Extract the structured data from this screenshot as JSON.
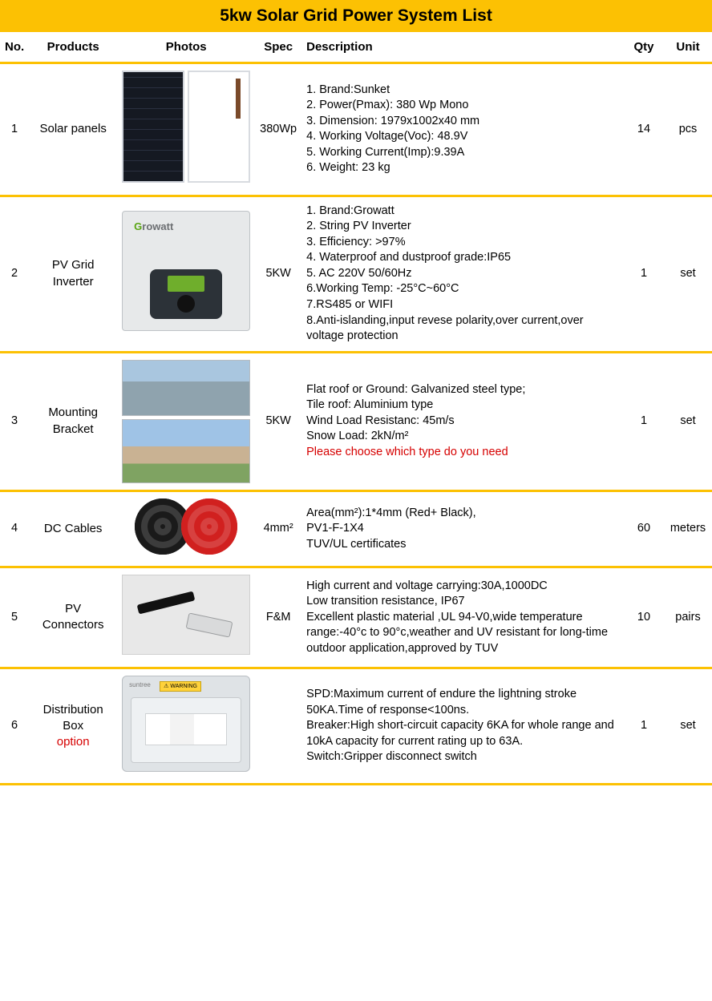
{
  "colors": {
    "accent": "#fcc103",
    "text": "#000000",
    "option_red": "#d60000",
    "background": "#ffffff"
  },
  "title": "5kw Solar Grid Power System List",
  "headers": {
    "no": "No.",
    "products": "Products",
    "photos": "Photos",
    "spec": "Spec",
    "description": "Description",
    "qty": "Qty",
    "unit": "Unit"
  },
  "rows": [
    {
      "no": "1",
      "product": "Solar panels",
      "product_option": "",
      "spec": "380Wp",
      "description_lines": [
        "1. Brand:Sunket",
        "2. Power(Pmax): 380 Wp Mono",
        "3. Dimension: 1979x1002x40 mm",
        "4. Working Voltage(Voc): 48.9V",
        "5. Working Current(Imp):9.39A",
        "6. Weight: 23 kg"
      ],
      "note_red": "",
      "qty": "14",
      "unit": "pcs",
      "photo_kind": "solar"
    },
    {
      "no": "2",
      "product": "PV Grid Inverter",
      "product_option": "",
      "spec": "5KW",
      "description_lines": [
        "1. Brand:Growatt",
        "2. String PV  Inverter",
        "3. Efficiency: >97%",
        "4. Waterproof and dustproof grade:IP65",
        "5. AC 220V 50/60Hz",
        "6.Working Temp: -25°C~60°C",
        "7.RS485 or WIFI",
        "8.Anti-islanding,input revese polarity,over current,over voltage protection"
      ],
      "note_red": "",
      "qty": "1",
      "unit": "set",
      "photo_kind": "inverter",
      "photo_brand": "Growatt"
    },
    {
      "no": "3",
      "product": "Mounting Bracket",
      "product_option": "",
      "spec": "5KW",
      "description_lines": [
        "Flat roof or Ground: Galvanized steel type;",
        "Tile roof: Aluminium type",
        "Wind Load Resistanc: 45m/s",
        "Snow Load: 2kN/m²"
      ],
      "note_red": "Please choose which type do you need",
      "qty": "1",
      "unit": "set",
      "photo_kind": "mounting"
    },
    {
      "no": "4",
      "product": "DC Cables",
      "product_option": "",
      "spec": "4mm²",
      "description_lines": [
        "Area(mm²):1*4mm (Red+ Black),",
        "PV1-F-1X4",
        "TUV/UL certificates"
      ],
      "note_red": "",
      "qty": "60",
      "unit": "meters",
      "photo_kind": "cables"
    },
    {
      "no": "5",
      "product": "PV Connectors",
      "product_option": "",
      "spec": "F&M",
      "description_lines": [
        "High current and voltage carrying:30A,1000DC",
        "Low transition resistance, IP67",
        "Excellent plastic material ,UL 94-V0,wide temperature range:-40°c to 90°c,weather and UV resistant for long-time outdoor application,approved by TUV"
      ],
      "note_red": "",
      "qty": "10",
      "unit": "pairs",
      "photo_kind": "connectors"
    },
    {
      "no": "6",
      "product": "Distribution Box",
      "product_option": "option",
      "spec": "",
      "description_lines": [
        "SPD:Maximum current of endure the lightning stroke 50KA.Time of response<100ns.",
        "Breaker:High short-circuit capacity 6KA for whole range and 10kA capacity for current rating up to 63A.",
        "Switch:Gripper disconnect switch"
      ],
      "note_red": "",
      "qty": "1",
      "unit": "set",
      "photo_kind": "distbox",
      "photo_tag": "suntree",
      "photo_warn": "⚠ WARNING"
    }
  ]
}
